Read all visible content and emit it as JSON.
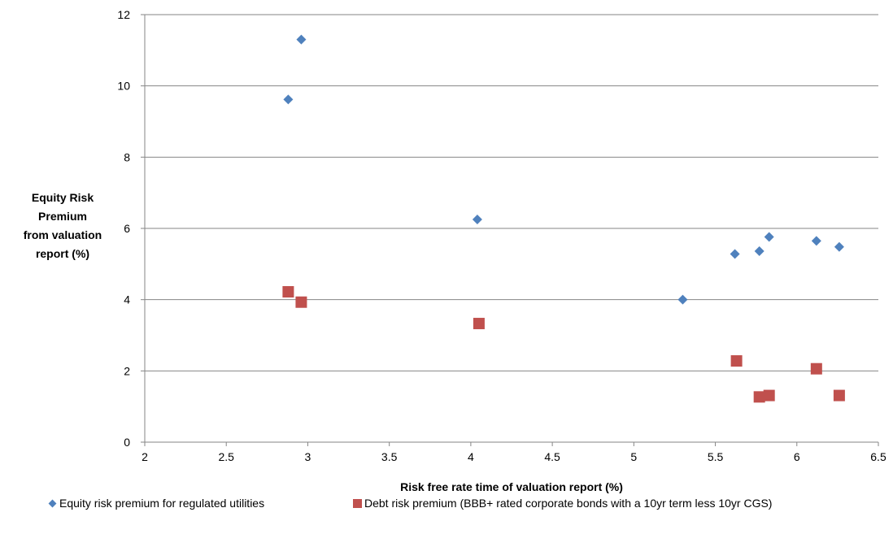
{
  "chart_data": {
    "type": "scatter",
    "title": "",
    "xlabel": "Risk free rate time of valuation report (%)",
    "ylabel_lines": [
      "Equity Risk",
      "Premium",
      "from valuation",
      "report (%)"
    ],
    "xlim": [
      2,
      6.5
    ],
    "ylim": [
      0,
      12
    ],
    "x_ticks": [
      "2",
      "2.5",
      "3",
      "3.5",
      "4",
      "4.5",
      "5",
      "5.5",
      "6",
      "6.5"
    ],
    "y_ticks": [
      "0",
      "2",
      "4",
      "6",
      "8",
      "10",
      "12"
    ],
    "grid": "horizontal",
    "legend_position": "bottom",
    "series": [
      {
        "name": "Equity risk premium for regulated utilities",
        "marker": "diamond",
        "color": "#4f81bd",
        "points": [
          {
            "x": 2.88,
            "y": 9.62
          },
          {
            "x": 2.96,
            "y": 11.3
          },
          {
            "x": 4.04,
            "y": 6.25
          },
          {
            "x": 5.3,
            "y": 4.0
          },
          {
            "x": 5.62,
            "y": 5.28
          },
          {
            "x": 5.77,
            "y": 5.36
          },
          {
            "x": 5.83,
            "y": 5.76
          },
          {
            "x": 6.12,
            "y": 5.65
          },
          {
            "x": 6.26,
            "y": 5.48
          }
        ]
      },
      {
        "name": "Debt risk premium (BBB+ rated corporate bonds with a 10yr term less 10yr CGS)",
        "marker": "square",
        "color": "#c0504d",
        "points": [
          {
            "x": 2.88,
            "y": 4.22
          },
          {
            "x": 2.96,
            "y": 3.93
          },
          {
            "x": 4.05,
            "y": 3.33
          },
          {
            "x": 5.63,
            "y": 2.28
          },
          {
            "x": 5.77,
            "y": 1.27
          },
          {
            "x": 5.83,
            "y": 1.31
          },
          {
            "x": 6.12,
            "y": 2.06
          },
          {
            "x": 6.26,
            "y": 1.31
          }
        ]
      }
    ]
  }
}
